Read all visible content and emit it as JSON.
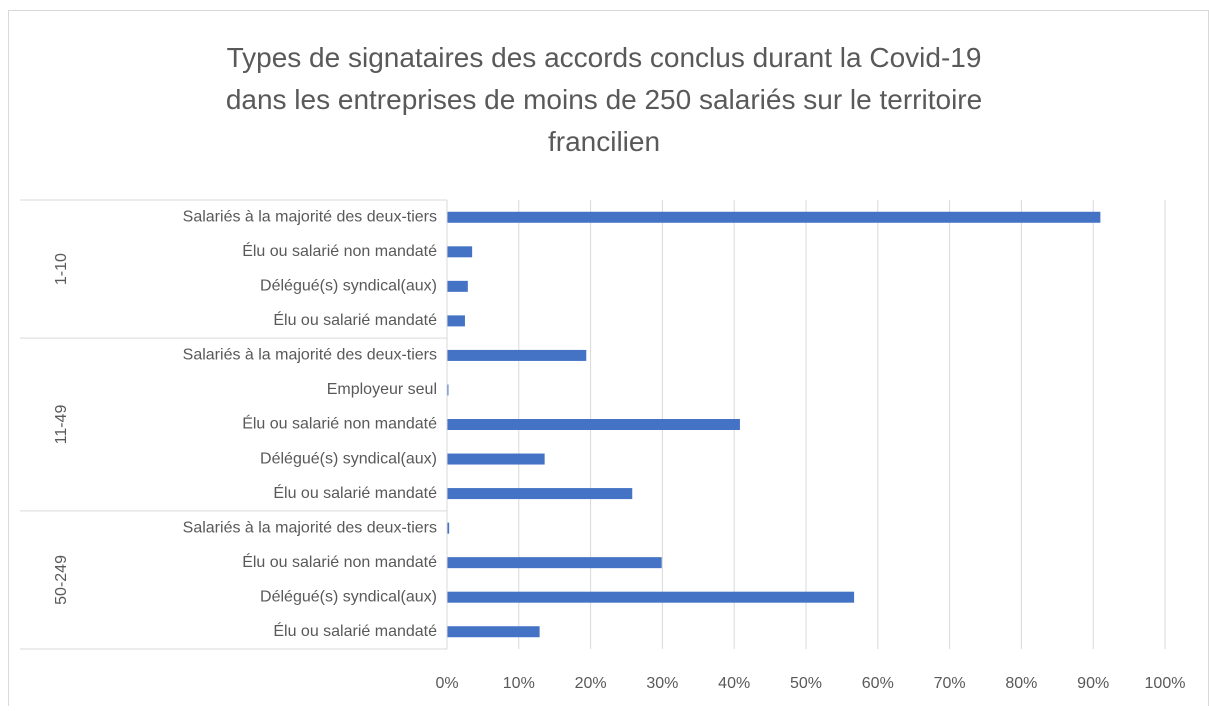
{
  "chart_data": {
    "type": "bar",
    "title": "Types de signataires des accords conclus durant la Covid-19\ndans les entreprises de moins de 250 salariés sur le territoire\nfrancilien",
    "color": "#4472c4",
    "groups": [
      {
        "name": "1-10",
        "categories": [
          "Salariés à la majorité des deux-tiers",
          "Élu ou salarié non mandaté",
          "Délégué(s) syndical(aux)",
          "Élu ou salarié mandaté"
        ],
        "values": [
          91,
          3.5,
          2.9,
          2.5
        ]
      },
      {
        "name": "11-49",
        "categories": [
          "Salariés à la majorité des deux-tiers",
          "Employeur seul",
          "Élu ou salarié non mandaté",
          "Délégué(s) syndical(aux)",
          "Élu ou salarié mandaté"
        ],
        "values": [
          19.4,
          0.2,
          40.8,
          13.6,
          25.8
        ]
      },
      {
        "name": "50-249",
        "categories": [
          "Salariés à la majorité des deux-tiers",
          "Élu ou salarié non mandaté",
          "Délégué(s) syndical(aux)",
          "Élu ou salarié mandaté"
        ],
        "values": [
          0.3,
          29.9,
          56.7,
          12.9
        ]
      }
    ],
    "xlim": [
      0,
      100
    ],
    "xticks": [
      {
        "value": 0,
        "label": "0%"
      },
      {
        "value": 10,
        "label": "10%"
      },
      {
        "value": 20,
        "label": "20%"
      },
      {
        "value": 30,
        "label": "30%"
      },
      {
        "value": 40,
        "label": "40%"
      },
      {
        "value": 50,
        "label": "50%"
      },
      {
        "value": 60,
        "label": "60%"
      },
      {
        "value": 70,
        "label": "70%"
      },
      {
        "value": 80,
        "label": "80%"
      },
      {
        "value": 90,
        "label": "90%"
      },
      {
        "value": 100,
        "label": "100%"
      }
    ],
    "grid": true
  }
}
